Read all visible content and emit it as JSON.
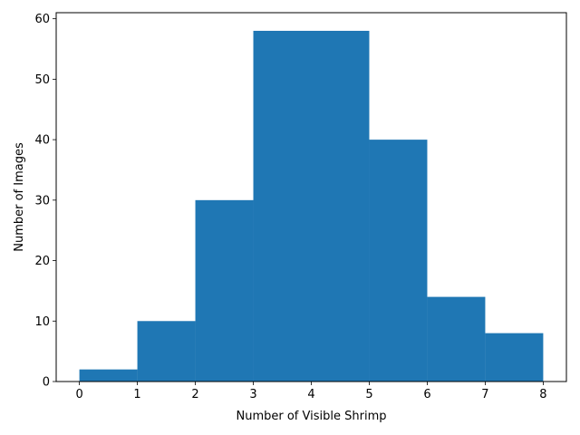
{
  "chart_data": {
    "type": "bar",
    "histogram": true,
    "bins": [
      {
        "start": 0,
        "end": 1,
        "value": 2
      },
      {
        "start": 1,
        "end": 2,
        "value": 10
      },
      {
        "start": 2,
        "end": 3,
        "value": 30
      },
      {
        "start": 3,
        "end": 4,
        "value": 58
      },
      {
        "start": 4,
        "end": 5,
        "value": 58
      },
      {
        "start": 5,
        "end": 6,
        "value": 40
      },
      {
        "start": 6,
        "end": 7,
        "value": 14
      },
      {
        "start": 7,
        "end": 8,
        "value": 8
      }
    ],
    "xlabel": "Number of Visible Shrimp",
    "ylabel": "Number of Images",
    "xlim": [
      -0.4,
      8.4
    ],
    "ylim": [
      0,
      61
    ],
    "xticks": [
      "0",
      "1",
      "2",
      "3",
      "4",
      "5",
      "6",
      "7",
      "8"
    ],
    "yticks": [
      "0",
      "10",
      "20",
      "30",
      "40",
      "50",
      "60"
    ],
    "grid": false,
    "colors": {
      "bar": "#1f77b4"
    }
  }
}
